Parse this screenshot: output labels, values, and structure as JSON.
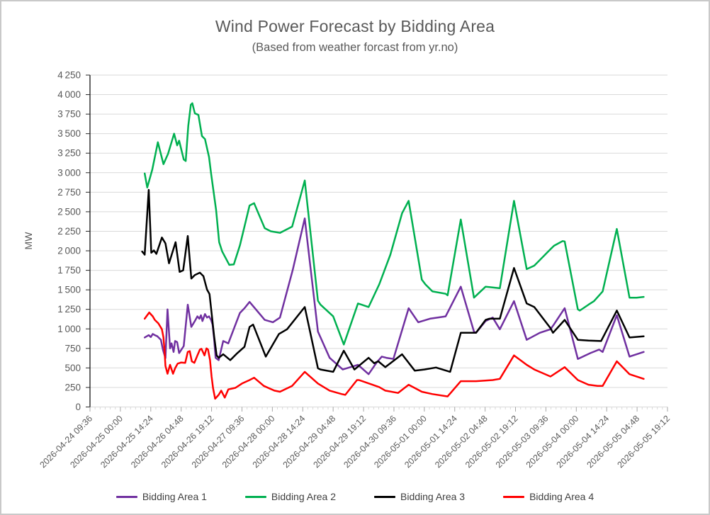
{
  "chart_data": {
    "type": "line",
    "title": "Wind Power Forecast by Bidding Area",
    "subtitle": "(Based from weather forcast from yr.no)",
    "ylabel": "MW",
    "ylim": [
      0,
      4250
    ],
    "ytick_step": 250,
    "grid": "horizontal",
    "legend_position": "bottom",
    "x_axis_note": "time axis; t = days since 2026-04-24 09:36, tick interval 0.6 days (14.4 h)",
    "x_range_days": [
      0,
      11.4
    ],
    "x_tick_interval_days": 0.6,
    "x_tick_labels": [
      "2026-04-24 09:36",
      "2026-04-25 00:00",
      "2026-04-25 14:24",
      "2026-04-26 04:48",
      "2026-04-26 19:12",
      "2026-04-27 09:36",
      "2026-04-28 00:00",
      "2026-04-28 14:24",
      "2026-04-29 04:48",
      "2026-04-29 19:12",
      "2026-04-30 09:36",
      "2026-05-01 00:00",
      "2026-05-01 14:24",
      "2026-05-02 04:48",
      "2026-05-02 19:12",
      "2026-05-03 09:36",
      "2026-05-04 00:00",
      "2026-05-04 14:24",
      "2026-05-05 04:48",
      "2026-05-05 19:12"
    ],
    "axis_text_color": "#595959",
    "gridline_color": "#d9d9d9",
    "axis_line_color": "#262626",
    "series": [
      {
        "name": "Bidding Area 1",
        "color": "#7030A0",
        "points": [
          [
            1.08,
            890
          ],
          [
            1.16,
            920
          ],
          [
            1.2,
            895
          ],
          [
            1.24,
            935
          ],
          [
            1.28,
            920
          ],
          [
            1.33,
            905
          ],
          [
            1.4,
            860
          ],
          [
            1.44,
            735
          ],
          [
            1.49,
            625
          ],
          [
            1.53,
            1250
          ],
          [
            1.58,
            750
          ],
          [
            1.61,
            815
          ],
          [
            1.65,
            705
          ],
          [
            1.68,
            845
          ],
          [
            1.72,
            830
          ],
          [
            1.76,
            690
          ],
          [
            1.85,
            780
          ],
          [
            1.93,
            1310
          ],
          [
            2.0,
            1025
          ],
          [
            2.07,
            1100
          ],
          [
            2.12,
            1160
          ],
          [
            2.16,
            1130
          ],
          [
            2.19,
            1175
          ],
          [
            2.22,
            1100
          ],
          [
            2.27,
            1190
          ],
          [
            2.31,
            1145
          ],
          [
            2.35,
            1160
          ],
          [
            2.39,
            1115
          ],
          [
            2.42,
            1055
          ],
          [
            2.45,
            870
          ],
          [
            2.48,
            630
          ],
          [
            2.54,
            600
          ],
          [
            2.63,
            845
          ],
          [
            2.73,
            815
          ],
          [
            2.96,
            1205
          ],
          [
            3.05,
            1265
          ],
          [
            3.15,
            1345
          ],
          [
            3.45,
            1115
          ],
          [
            3.61,
            1085
          ],
          [
            3.75,
            1145
          ],
          [
            4.0,
            1750
          ],
          [
            4.24,
            2415
          ],
          [
            4.5,
            965
          ],
          [
            4.73,
            630
          ],
          [
            4.99,
            480
          ],
          [
            5.22,
            525
          ],
          [
            5.29,
            540
          ],
          [
            5.5,
            420
          ],
          [
            5.66,
            570
          ],
          [
            5.76,
            645
          ],
          [
            5.85,
            630
          ],
          [
            5.99,
            615
          ],
          [
            6.29,
            1265
          ],
          [
            6.48,
            1085
          ],
          [
            6.71,
            1130
          ],
          [
            7.02,
            1160
          ],
          [
            7.32,
            1540
          ],
          [
            7.58,
            965
          ],
          [
            7.62,
            950
          ],
          [
            7.81,
            1100
          ],
          [
            7.95,
            1145
          ],
          [
            8.09,
            995
          ],
          [
            8.37,
            1355
          ],
          [
            8.62,
            860
          ],
          [
            8.88,
            950
          ],
          [
            9.09,
            995
          ],
          [
            9.16,
            1060
          ],
          [
            9.37,
            1265
          ],
          [
            9.63,
            615
          ],
          [
            9.88,
            690
          ],
          [
            10.05,
            735
          ],
          [
            10.12,
            705
          ],
          [
            10.4,
            1175
          ],
          [
            10.65,
            645
          ],
          [
            10.93,
            705
          ]
        ]
      },
      {
        "name": "Bidding Area 2",
        "color": "#00B050",
        "points": [
          [
            1.08,
            2990
          ],
          [
            1.13,
            2810
          ],
          [
            1.23,
            3040
          ],
          [
            1.34,
            3390
          ],
          [
            1.45,
            3110
          ],
          [
            1.54,
            3240
          ],
          [
            1.66,
            3500
          ],
          [
            1.72,
            3350
          ],
          [
            1.76,
            3410
          ],
          [
            1.85,
            3170
          ],
          [
            1.89,
            3150
          ],
          [
            1.94,
            3600
          ],
          [
            1.99,
            3870
          ],
          [
            2.02,
            3890
          ],
          [
            2.07,
            3760
          ],
          [
            2.14,
            3740
          ],
          [
            2.21,
            3470
          ],
          [
            2.27,
            3430
          ],
          [
            2.35,
            3200
          ],
          [
            2.39,
            2990
          ],
          [
            2.49,
            2520
          ],
          [
            2.55,
            2110
          ],
          [
            2.61,
            1990
          ],
          [
            2.75,
            1820
          ],
          [
            2.84,
            1825
          ],
          [
            2.96,
            2070
          ],
          [
            3.15,
            2580
          ],
          [
            3.24,
            2610
          ],
          [
            3.33,
            2470
          ],
          [
            3.45,
            2290
          ],
          [
            3.57,
            2250
          ],
          [
            3.75,
            2230
          ],
          [
            3.99,
            2310
          ],
          [
            4.24,
            2900
          ],
          [
            4.5,
            1360
          ],
          [
            4.55,
            1310
          ],
          [
            4.8,
            1160
          ],
          [
            5.01,
            800
          ],
          [
            5.29,
            1325
          ],
          [
            5.5,
            1280
          ],
          [
            5.71,
            1570
          ],
          [
            5.93,
            1950
          ],
          [
            6.16,
            2480
          ],
          [
            6.29,
            2640
          ],
          [
            6.55,
            1630
          ],
          [
            6.62,
            1570
          ],
          [
            6.76,
            1480
          ],
          [
            7.02,
            1450
          ],
          [
            7.06,
            1430
          ],
          [
            7.32,
            2400
          ],
          [
            7.58,
            1400
          ],
          [
            7.81,
            1540
          ],
          [
            7.88,
            1535
          ],
          [
            8.09,
            1520
          ],
          [
            8.37,
            2640
          ],
          [
            8.62,
            1765
          ],
          [
            8.77,
            1810
          ],
          [
            9.09,
            2020
          ],
          [
            9.16,
            2065
          ],
          [
            9.33,
            2125
          ],
          [
            9.37,
            2120
          ],
          [
            9.63,
            1250
          ],
          [
            9.67,
            1235
          ],
          [
            9.84,
            1310
          ],
          [
            9.95,
            1355
          ],
          [
            10.12,
            1480
          ],
          [
            10.4,
            2280
          ],
          [
            10.65,
            1400
          ],
          [
            10.79,
            1400
          ],
          [
            10.93,
            1410
          ]
        ]
      },
      {
        "name": "Bidding Area 3",
        "color": "#000000",
        "points": [
          [
            1.03,
            1990
          ],
          [
            1.08,
            1950
          ],
          [
            1.16,
            2780
          ],
          [
            1.21,
            1975
          ],
          [
            1.26,
            2005
          ],
          [
            1.31,
            1960
          ],
          [
            1.42,
            2170
          ],
          [
            1.49,
            2095
          ],
          [
            1.56,
            1840
          ],
          [
            1.69,
            2110
          ],
          [
            1.77,
            1730
          ],
          [
            1.84,
            1750
          ],
          [
            1.93,
            2190
          ],
          [
            2.0,
            1645
          ],
          [
            2.07,
            1690
          ],
          [
            2.17,
            1720
          ],
          [
            2.24,
            1675
          ],
          [
            2.31,
            1505
          ],
          [
            2.36,
            1445
          ],
          [
            2.45,
            905
          ],
          [
            2.5,
            660
          ],
          [
            2.54,
            630
          ],
          [
            2.63,
            675
          ],
          [
            2.77,
            600
          ],
          [
            2.91,
            690
          ],
          [
            3.05,
            770
          ],
          [
            3.15,
            1025
          ],
          [
            3.22,
            1055
          ],
          [
            3.47,
            645
          ],
          [
            3.73,
            935
          ],
          [
            3.89,
            995
          ],
          [
            4.24,
            1280
          ],
          [
            4.5,
            495
          ],
          [
            4.55,
            480
          ],
          [
            4.8,
            450
          ],
          [
            5.01,
            720
          ],
          [
            5.22,
            480
          ],
          [
            5.5,
            630
          ],
          [
            5.61,
            560
          ],
          [
            5.69,
            585
          ],
          [
            5.83,
            510
          ],
          [
            6.16,
            675
          ],
          [
            6.41,
            465
          ],
          [
            6.6,
            480
          ],
          [
            6.83,
            505
          ],
          [
            7.11,
            450
          ],
          [
            7.32,
            950
          ],
          [
            7.48,
            950
          ],
          [
            7.62,
            950
          ],
          [
            7.81,
            1115
          ],
          [
            7.88,
            1130
          ],
          [
            8.09,
            1130
          ],
          [
            8.37,
            1780
          ],
          [
            8.62,
            1325
          ],
          [
            8.77,
            1280
          ],
          [
            9.09,
            1010
          ],
          [
            9.14,
            950
          ],
          [
            9.37,
            1115
          ],
          [
            9.63,
            860
          ],
          [
            9.84,
            850
          ],
          [
            10.09,
            845
          ],
          [
            10.4,
            1235
          ],
          [
            10.65,
            890
          ],
          [
            10.93,
            905
          ]
        ]
      },
      {
        "name": "Bidding Area 4",
        "color": "#FF0000",
        "points": [
          [
            1.08,
            1130
          ],
          [
            1.17,
            1210
          ],
          [
            1.24,
            1160
          ],
          [
            1.28,
            1115
          ],
          [
            1.35,
            1070
          ],
          [
            1.42,
            995
          ],
          [
            1.45,
            890
          ],
          [
            1.47,
            735
          ],
          [
            1.49,
            525
          ],
          [
            1.53,
            425
          ],
          [
            1.58,
            540
          ],
          [
            1.64,
            425
          ],
          [
            1.68,
            495
          ],
          [
            1.73,
            555
          ],
          [
            1.8,
            570
          ],
          [
            1.88,
            565
          ],
          [
            1.93,
            705
          ],
          [
            1.97,
            715
          ],
          [
            2.01,
            585
          ],
          [
            2.06,
            565
          ],
          [
            2.12,
            660
          ],
          [
            2.17,
            735
          ],
          [
            2.2,
            745
          ],
          [
            2.26,
            660
          ],
          [
            2.3,
            750
          ],
          [
            2.33,
            735
          ],
          [
            2.37,
            600
          ],
          [
            2.4,
            390
          ],
          [
            2.43,
            240
          ],
          [
            2.47,
            105
          ],
          [
            2.54,
            155
          ],
          [
            2.59,
            210
          ],
          [
            2.66,
            120
          ],
          [
            2.73,
            225
          ],
          [
            2.87,
            245
          ],
          [
            3.0,
            300
          ],
          [
            3.15,
            345
          ],
          [
            3.24,
            375
          ],
          [
            3.43,
            270
          ],
          [
            3.64,
            210
          ],
          [
            3.75,
            195
          ],
          [
            3.99,
            270
          ],
          [
            4.24,
            450
          ],
          [
            4.5,
            300
          ],
          [
            4.73,
            210
          ],
          [
            4.97,
            165
          ],
          [
            5.04,
            155
          ],
          [
            5.27,
            345
          ],
          [
            5.31,
            345
          ],
          [
            5.71,
            255
          ],
          [
            5.83,
            210
          ],
          [
            6.08,
            180
          ],
          [
            6.29,
            285
          ],
          [
            6.55,
            195
          ],
          [
            6.76,
            165
          ],
          [
            7.06,
            135
          ],
          [
            7.32,
            330
          ],
          [
            7.62,
            330
          ],
          [
            7.95,
            345
          ],
          [
            8.09,
            360
          ],
          [
            8.37,
            660
          ],
          [
            8.62,
            540
          ],
          [
            8.77,
            480
          ],
          [
            9.09,
            390
          ],
          [
            9.37,
            510
          ],
          [
            9.63,
            345
          ],
          [
            9.84,
            285
          ],
          [
            10.02,
            270
          ],
          [
            10.12,
            270
          ],
          [
            10.4,
            585
          ],
          [
            10.65,
            420
          ],
          [
            10.93,
            360
          ]
        ]
      }
    ]
  }
}
